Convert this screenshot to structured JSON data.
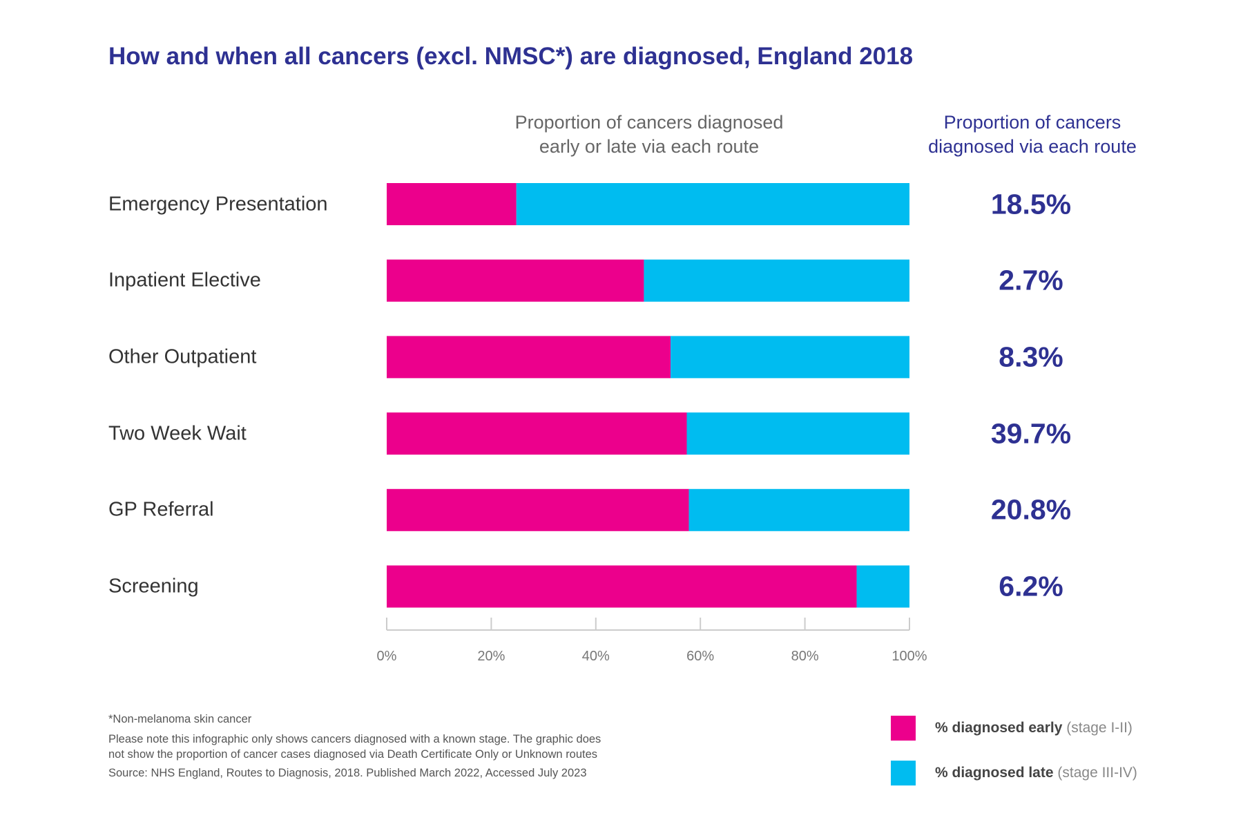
{
  "title": "How and when all cancers (excl. NMSC*) are diagnosed, England 2018",
  "header_left": [
    "Proportion of cancers diagnosed",
    "early or late via each route"
  ],
  "header_right": [
    "Proportion of cancers",
    "diagnosed via each route"
  ],
  "colors": {
    "early": "#EC008C",
    "late": "#00BCF0",
    "accent": "#2E3192"
  },
  "chart_data": {
    "type": "bar",
    "orientation": "horizontal",
    "stacked": true,
    "categories": [
      "Emergency Presentation",
      "Inpatient Elective",
      "Other Outpatient",
      "Two Week Wait",
      "GP Referral",
      "Screening"
    ],
    "series": [
      {
        "name": "% diagnosed early (stage I-II)",
        "values": [
          24.8,
          49.2,
          54.3,
          57.4,
          57.8,
          89.9
        ]
      },
      {
        "name": "% diagnosed late (stage III-IV)",
        "values": [
          75.2,
          50.8,
          45.7,
          42.6,
          42.2,
          10.1
        ]
      }
    ],
    "route_share": [
      "18.5%",
      "2.7%",
      "8.3%",
      "39.7%",
      "20.8%",
      "6.2%"
    ],
    "xlim": [
      0,
      100
    ],
    "x_ticks": [
      "0%",
      "20%",
      "40%",
      "60%",
      "80%",
      "100%"
    ],
    "grid": false,
    "legend_position": "bottom-right"
  },
  "legend": [
    {
      "bold": "% diagnosed early",
      "rest": " (stage I-II)"
    },
    {
      "bold": "% diagnosed late",
      "rest": " (stage III-IV)"
    }
  ],
  "notes": [
    "*Non-melanoma skin cancer",
    "Please note this infographic only shows cancers diagnosed with a known stage. The graphic does",
    "not show the proportion of cancer cases diagnosed via Death Certificate Only or Unknown routes",
    "Source: NHS England, Routes to Diagnosis, 2018. Published March 2022, Accessed July 2023"
  ]
}
